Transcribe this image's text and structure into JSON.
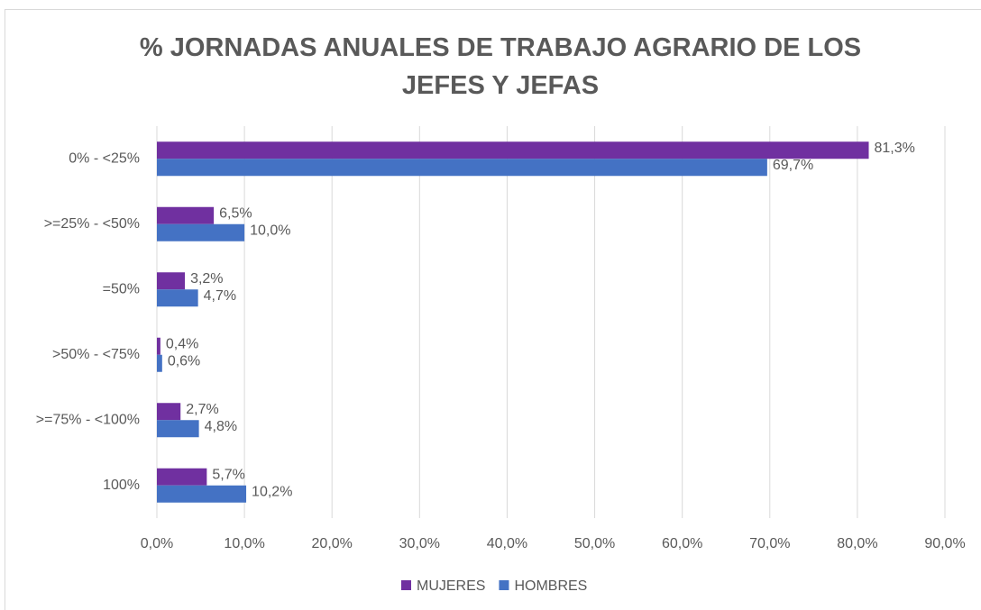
{
  "chart_data": {
    "type": "bar",
    "orientation": "horizontal",
    "title": "% JORNADAS ANUALES DE TRABAJO AGRARIO DE LOS JEFES Y JEFAS",
    "categories": [
      "0% - <25%",
      ">=25% - <50%",
      "=50%",
      ">50% - <75%",
      ">=75% - <100%",
      "100%"
    ],
    "series": [
      {
        "name": "MUJERES",
        "color": "#7030a0",
        "values": [
          81.3,
          6.5,
          3.2,
          0.4,
          2.7,
          5.7
        ],
        "value_labels": [
          "81,3%",
          "6,5%",
          "3,2%",
          "0,4%",
          "2,7%",
          "5,7%"
        ]
      },
      {
        "name": "HOMBRES",
        "color": "#4472c4",
        "values": [
          69.7,
          10.0,
          4.7,
          0.6,
          4.8,
          10.2
        ],
        "value_labels": [
          "69,7%",
          "10,0%",
          "4,7%",
          "0,6%",
          "4,8%",
          "10,2%"
        ]
      }
    ],
    "xlim": [
      0,
      90
    ],
    "xticks": [
      {
        "value": 0,
        "label": "0,0%"
      },
      {
        "value": 10,
        "label": "10,0%"
      },
      {
        "value": 20,
        "label": "20,0%"
      },
      {
        "value": 30,
        "label": "30,0%"
      },
      {
        "value": 40,
        "label": "40,0%"
      },
      {
        "value": 50,
        "label": "50,0%"
      },
      {
        "value": 60,
        "label": "60,0%"
      },
      {
        "value": 70,
        "label": "70,0%"
      },
      {
        "value": 80,
        "label": "80,0%"
      },
      {
        "value": 90,
        "label": "90,0%"
      }
    ],
    "grid": true,
    "legend": "bottom"
  }
}
